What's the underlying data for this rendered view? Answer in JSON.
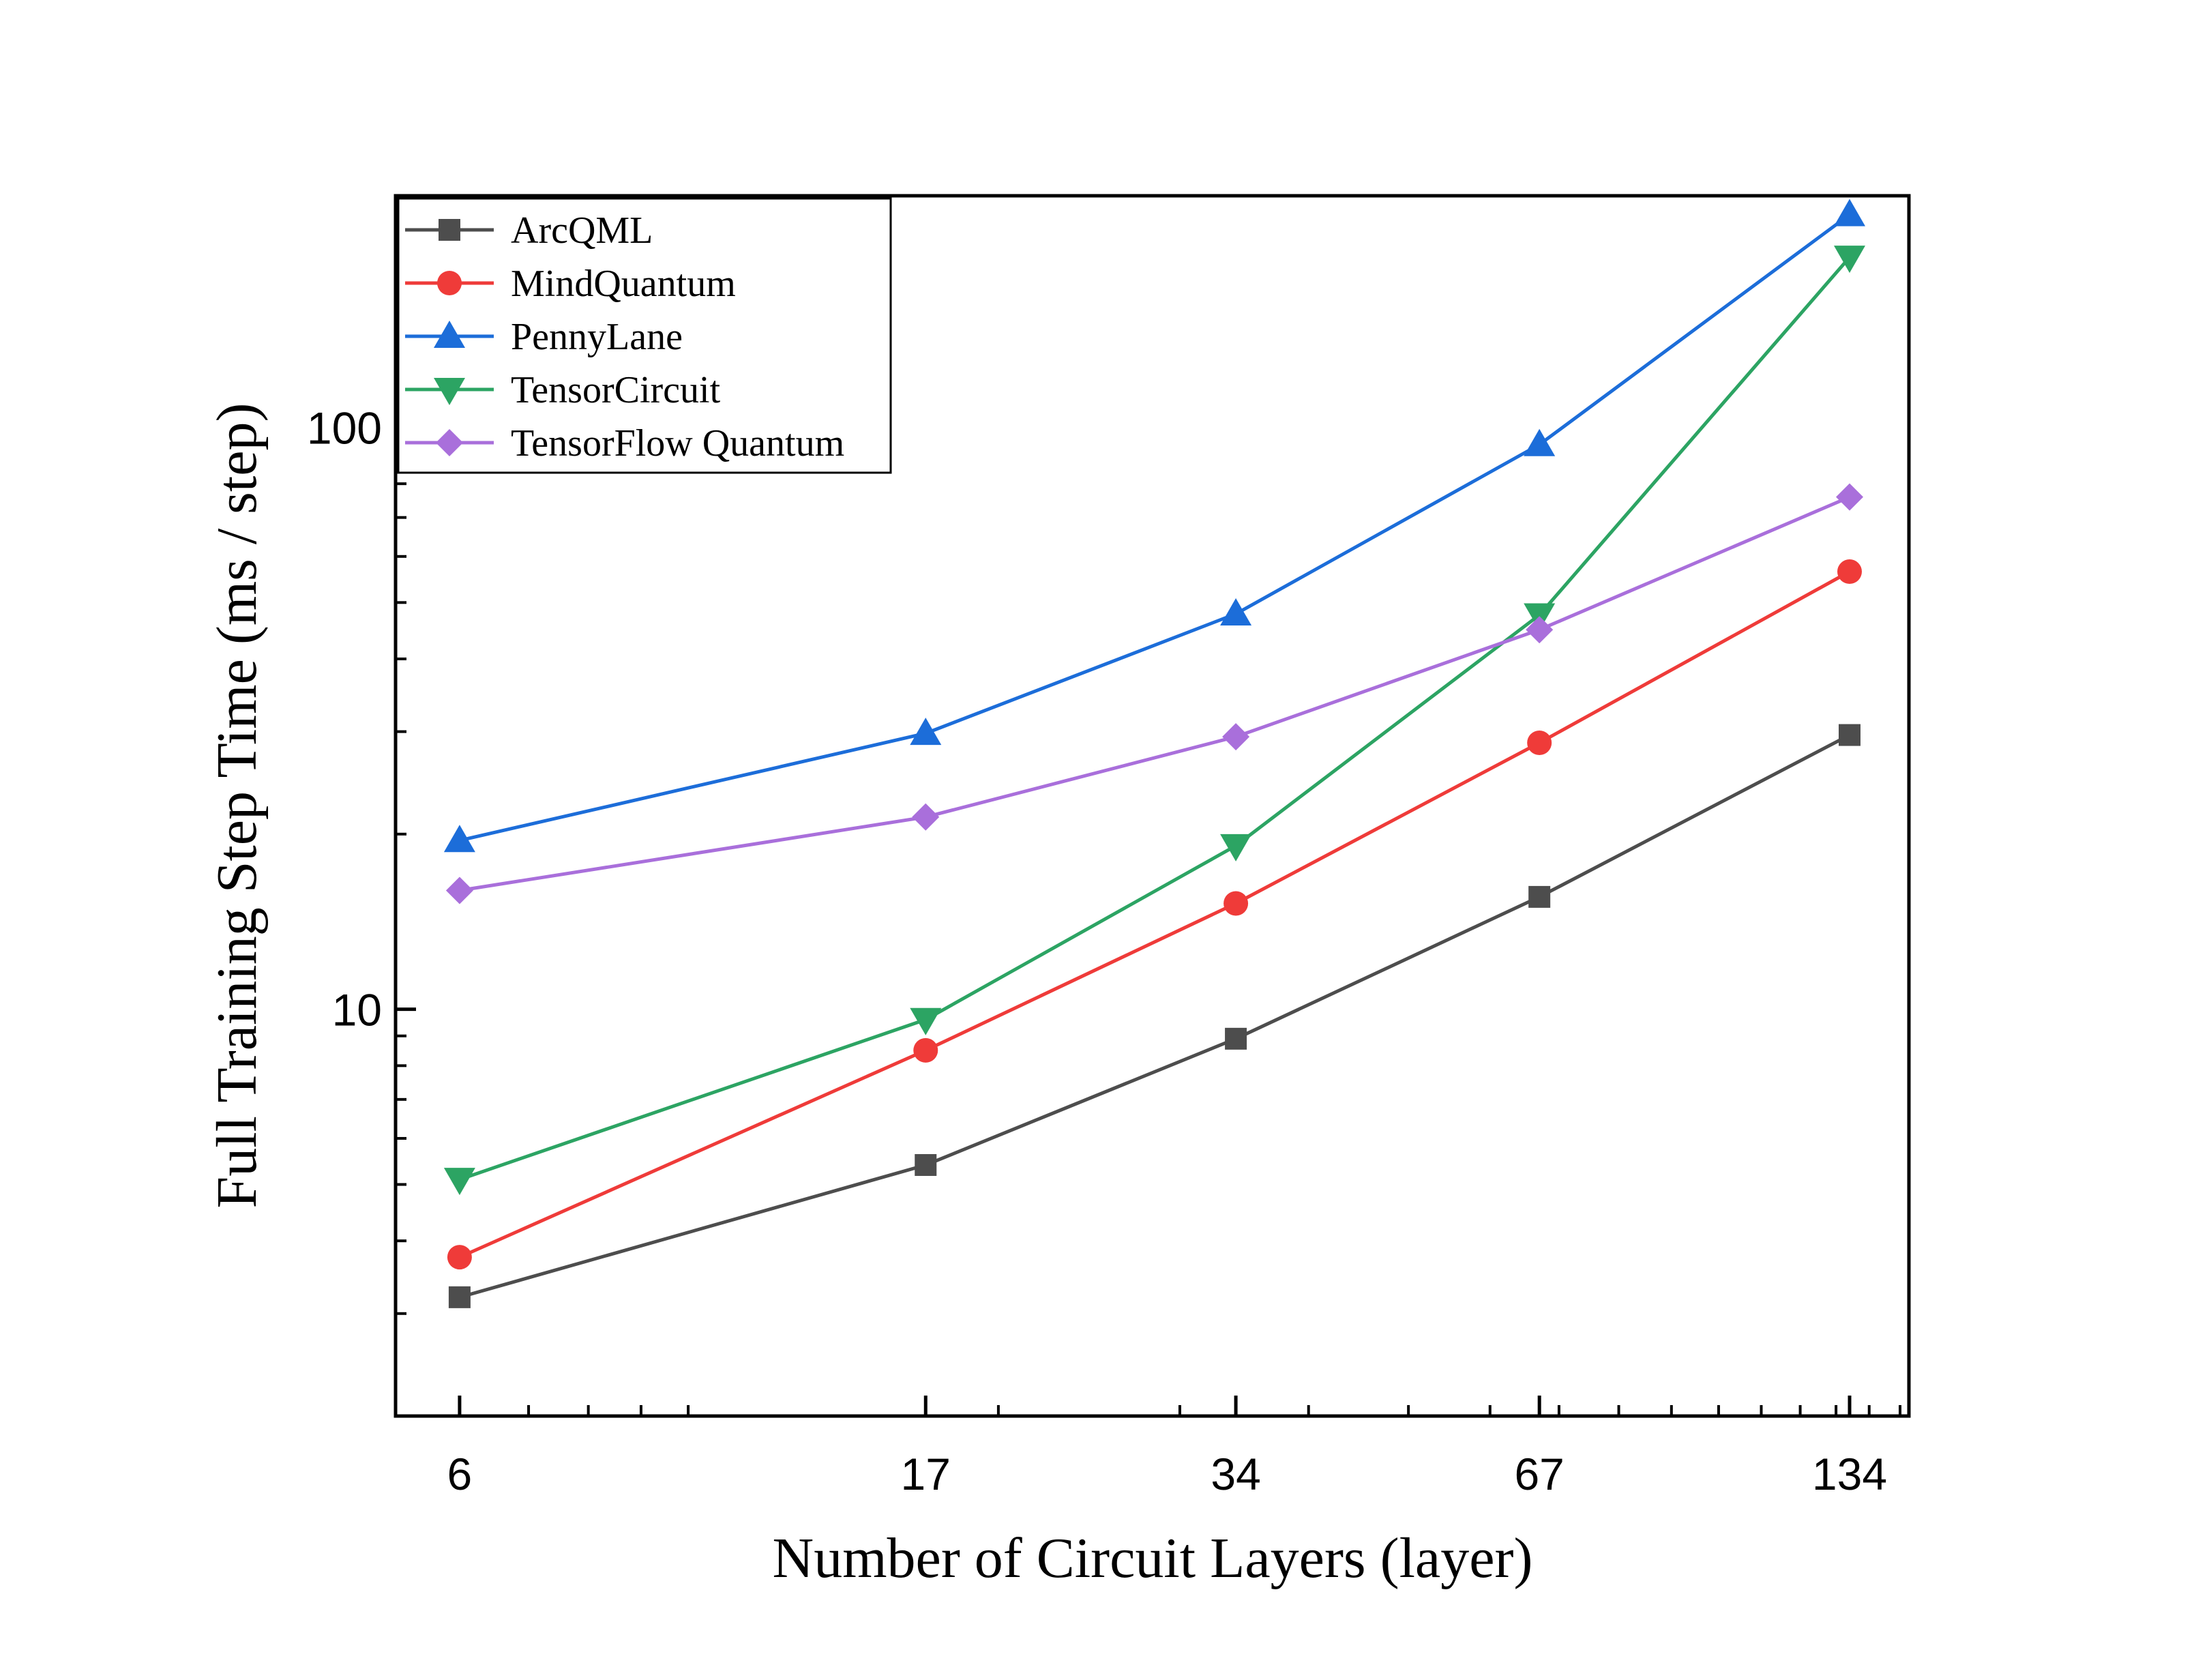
{
  "chart_data": {
    "type": "line",
    "title": "",
    "xlabel": "Number of Circuit Layers (layer)",
    "ylabel": "Full Training Step Time (ms / step)",
    "x_scale": "log",
    "y_scale": "log",
    "x": [
      6,
      17,
      34,
      67,
      134
    ],
    "x_tick_labels": [
      "6",
      "17",
      "34",
      "67",
      "134"
    ],
    "xlim": [
      5.2,
      153
    ],
    "ylim": [
      2.0,
      250
    ],
    "y_tick_labels": [
      "10",
      "100"
    ],
    "legend_position": "top-left",
    "grid": false,
    "series": [
      {
        "name": "ArcQML",
        "color": "#4d4d4d",
        "marker": "square",
        "values": [
          3.2,
          5.4,
          8.9,
          15.6,
          29.6
        ]
      },
      {
        "name": "MindQuantum",
        "color": "#ef3b39",
        "marker": "circle",
        "values": [
          3.75,
          8.5,
          15.2,
          28.7,
          56.5
        ]
      },
      {
        "name": "PennyLane",
        "color": "#1c6dd9",
        "marker": "triangle-up",
        "values": [
          19.5,
          29.8,
          47.8,
          93.4,
          232
        ]
      },
      {
        "name": "TensorCircuit",
        "color": "#2ca463",
        "marker": "triangle-down",
        "values": [
          5.1,
          9.6,
          19.1,
          47.6,
          196
        ]
      },
      {
        "name": "TensorFlow Quantum",
        "color": "#a96fdb",
        "marker": "diamond",
        "values": [
          16.0,
          21.4,
          29.4,
          44.9,
          75.9
        ]
      }
    ]
  }
}
